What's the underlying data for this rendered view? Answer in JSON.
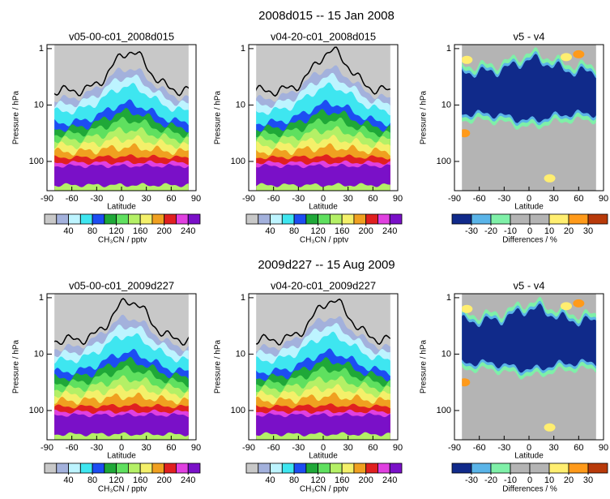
{
  "row_titles": [
    "2008d015 -- 15 Jan 2008",
    "2009d227 -- 15 Aug 2009"
  ],
  "chart_data": [
    {
      "type": "contour",
      "title": "v05-00-c01_2008d015",
      "xlabel": "Latitude",
      "ylabel": "Pressure / hPa",
      "xlim": [
        -90,
        90
      ],
      "xticks": [
        -90,
        -60,
        -30,
        0,
        30,
        60,
        90
      ],
      "ylim": [
        0.85,
        330
      ],
      "yticks": [
        1,
        10,
        100
      ],
      "log_y": true,
      "y_inverted": true,
      "colorbar": {
        "label": "CH₃CN / pptv",
        "lim": [
          0,
          260
        ],
        "ticks": [
          40,
          80,
          120,
          160,
          200,
          240
        ],
        "colors": [
          "#c8c8c8",
          "#a3b1dc",
          "#bdf4ff",
          "#3ee6f0",
          "#1d4df2",
          "#1fa838",
          "#5fe05f",
          "#b4f066",
          "#f4f06a",
          "#f0a020",
          "#e02020",
          "#e040e0",
          "#7a10c8"
        ]
      }
    },
    {
      "type": "contour",
      "title": "v04-20-c01_2008d015",
      "xlabel": "Latitude",
      "ylabel": "Pressure / hPa",
      "xlim": [
        -90,
        90
      ],
      "xticks": [
        -90,
        -60,
        -30,
        0,
        30,
        60,
        90
      ],
      "ylim": [
        0.85,
        330
      ],
      "yticks": [
        1,
        10,
        100
      ],
      "log_y": true,
      "y_inverted": true,
      "colorbar": {
        "label": "CH₃CN / pptv",
        "lim": [
          0,
          260
        ],
        "ticks": [
          40,
          80,
          120,
          160,
          200,
          240
        ],
        "colors": [
          "#c8c8c8",
          "#a3b1dc",
          "#bdf4ff",
          "#3ee6f0",
          "#1d4df2",
          "#1fa838",
          "#5fe05f",
          "#b4f066",
          "#f4f06a",
          "#f0a020",
          "#e02020",
          "#e040e0",
          "#7a10c8"
        ]
      }
    },
    {
      "type": "difference",
      "title": "v5 - v4",
      "xlabel": "Latitude",
      "ylabel": "Pressure / hPa",
      "xlim": [
        -90,
        90
      ],
      "xticks": [
        -90,
        -60,
        -30,
        0,
        30,
        60,
        90
      ],
      "ylim": [
        0.85,
        330
      ],
      "yticks": [
        1,
        10,
        100
      ],
      "log_y": true,
      "y_inverted": true,
      "colorbar": {
        "label": "Differences / %",
        "lim": [
          -40,
          40
        ],
        "ticks": [
          -30,
          -20,
          -10,
          0,
          10,
          20,
          30
        ],
        "colors": [
          "#102a8a",
          "#5ab4e8",
          "#7ff0a8",
          "#b4b4b4",
          "#b4b4b4",
          "#ffee70",
          "#ff9a1a",
          "#b83a0a"
        ]
      }
    },
    {
      "type": "contour",
      "title": "v05-00-c01_2009d227",
      "xlabel": "Latitude",
      "ylabel": "Pressure / hPa",
      "xlim": [
        -90,
        90
      ],
      "xticks": [
        -90,
        -60,
        -30,
        0,
        30,
        60,
        90
      ],
      "ylim": [
        0.85,
        330
      ],
      "yticks": [
        1,
        10,
        100
      ],
      "log_y": true,
      "y_inverted": true,
      "colorbar": {
        "label": "CH₃CN / pptv",
        "lim": [
          0,
          260
        ],
        "ticks": [
          40,
          80,
          120,
          160,
          200,
          240
        ],
        "colors": [
          "#c8c8c8",
          "#a3b1dc",
          "#bdf4ff",
          "#3ee6f0",
          "#1d4df2",
          "#1fa838",
          "#5fe05f",
          "#b4f066",
          "#f4f06a",
          "#f0a020",
          "#e02020",
          "#e040e0",
          "#7a10c8"
        ]
      }
    },
    {
      "type": "contour",
      "title": "v04-20-c01_2009d227",
      "xlabel": "Latitude",
      "ylabel": "Pressure / hPa",
      "xlim": [
        -90,
        90
      ],
      "xticks": [
        -90,
        -60,
        -30,
        0,
        30,
        60,
        90
      ],
      "ylim": [
        0.85,
        330
      ],
      "yticks": [
        1,
        10,
        100
      ],
      "log_y": true,
      "y_inverted": true,
      "colorbar": {
        "label": "CH₃CN / pptv",
        "lim": [
          0,
          260
        ],
        "ticks": [
          40,
          80,
          120,
          160,
          200,
          240
        ],
        "colors": [
          "#c8c8c8",
          "#a3b1dc",
          "#bdf4ff",
          "#3ee6f0",
          "#1d4df2",
          "#1fa838",
          "#5fe05f",
          "#b4f066",
          "#f4f06a",
          "#f0a020",
          "#e02020",
          "#e040e0",
          "#7a10c8"
        ]
      }
    },
    {
      "type": "difference",
      "title": "v5 - v4",
      "xlabel": "Latitude",
      "ylabel": "Pressure / hPa",
      "xlim": [
        -90,
        90
      ],
      "xticks": [
        -90,
        -60,
        -30,
        0,
        30,
        60,
        90
      ],
      "ylim": [
        0.85,
        330
      ],
      "yticks": [
        1,
        10,
        100
      ],
      "log_y": true,
      "y_inverted": true,
      "colorbar": {
        "label": "Differences / %",
        "lim": [
          -40,
          40
        ],
        "ticks": [
          -30,
          -20,
          -10,
          0,
          10,
          20,
          30
        ],
        "colors": [
          "#102a8a",
          "#5ab4e8",
          "#7ff0a8",
          "#b4b4b4",
          "#b4b4b4",
          "#ffee70",
          "#ff9a1a",
          "#b83a0a"
        ]
      }
    }
  ]
}
